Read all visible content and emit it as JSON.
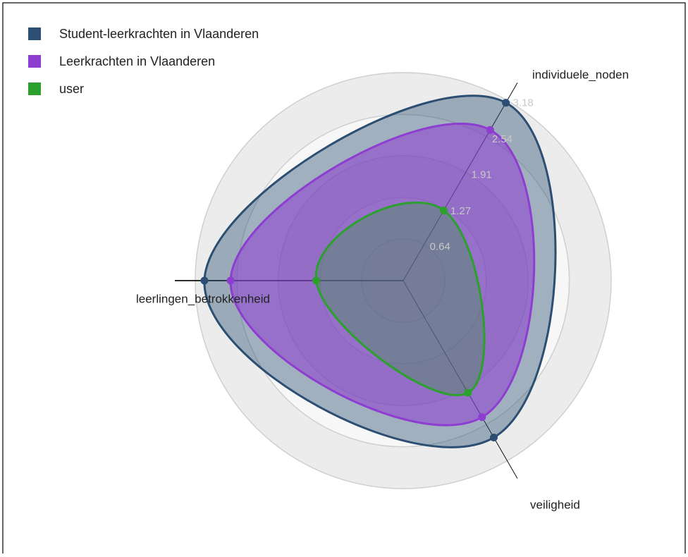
{
  "chart_data": {
    "type": "radar",
    "categories": [
      "individuele_noden",
      "leerlingen_betrokkenheid",
      "veiligheid"
    ],
    "series": [
      {
        "name": "Student-leerkrachten in Vlaanderen",
        "color": "#2b4e72",
        "values": [
          3.14,
          3.04,
          2.77
        ]
      },
      {
        "name": "Leerkrachten in Vlaanderen",
        "color": "#8e3dd1",
        "values": [
          2.66,
          2.64,
          2.41
        ]
      },
      {
        "name": "user",
        "color": "#2ca02c",
        "values": [
          1.24,
          1.33,
          1.98
        ]
      }
    ],
    "rlim": [
      0,
      3.18
    ],
    "rticks": [
      0.64,
      1.27,
      1.91,
      2.54,
      3.18
    ],
    "grid": true,
    "legend": "top-left"
  }
}
